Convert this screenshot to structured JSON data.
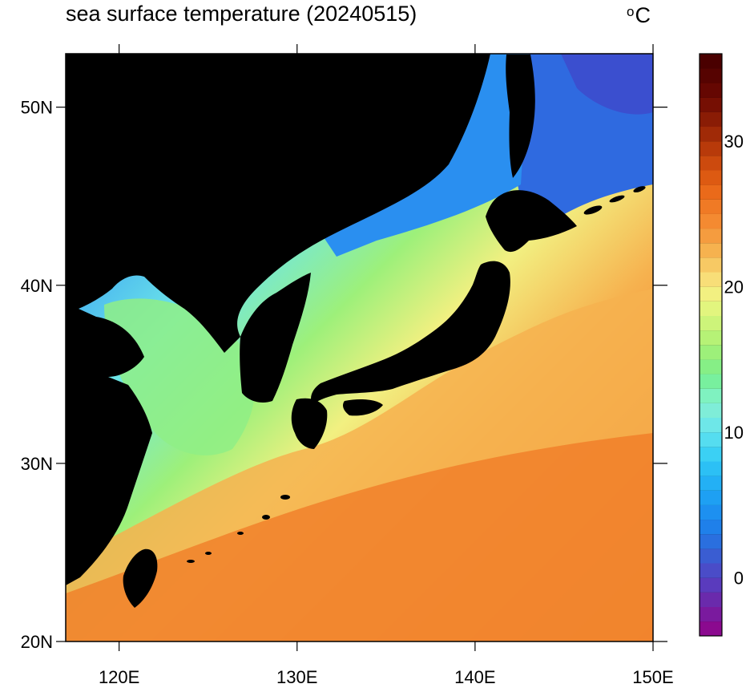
{
  "title": "sea surface temperature (20240515)",
  "units": {
    "degree": "o",
    "unit": "C"
  },
  "axes": {
    "lon_ticks": [
      {
        "value": 120,
        "label": "120E"
      },
      {
        "value": 130,
        "label": "130E"
      },
      {
        "value": 140,
        "label": "140E"
      },
      {
        "value": 150,
        "label": "150E"
      }
    ],
    "lat_ticks": [
      {
        "value": 20,
        "label": "20N"
      },
      {
        "value": 30,
        "label": "30N"
      },
      {
        "value": 40,
        "label": "40N"
      },
      {
        "value": 50,
        "label": "50N"
      }
    ],
    "lon_range": [
      117,
      150
    ],
    "lat_range": [
      20,
      53
    ]
  },
  "colorbar": {
    "min": -4,
    "max": 36,
    "step": 1,
    "tick_labels": [
      {
        "value": 0,
        "label": "0"
      },
      {
        "value": 10,
        "label": "10"
      },
      {
        "value": 20,
        "label": "20"
      },
      {
        "value": 30,
        "label": "30"
      }
    ],
    "colors": [
      "#8b0a8f",
      "#7a1a9e",
      "#6a2aac",
      "#5a3bbd",
      "#4a4cc8",
      "#3a5dd2",
      "#2a6fdf",
      "#1f80ea",
      "#1d90f0",
      "#1ea0f3",
      "#23b0f5",
      "#2cc0f5",
      "#3bd0f4",
      "#55ddf0",
      "#6ee7e8",
      "#7fedd8",
      "#7ff2c0",
      "#78f09e",
      "#86ef86",
      "#9df07a",
      "#b6f276",
      "#cdf47a",
      "#e2f57e",
      "#f2f081",
      "#f8de78",
      "#f7c964",
      "#f6b24f",
      "#f59c3f",
      "#f48a31",
      "#f07a25",
      "#ea6a1a",
      "#dd5a12",
      "#cc4a0e",
      "#b83a0a",
      "#a02a07",
      "#8a1c05",
      "#760f03",
      "#650702",
      "#560301",
      "#4a0000"
    ]
  },
  "land_color": "#000000"
}
